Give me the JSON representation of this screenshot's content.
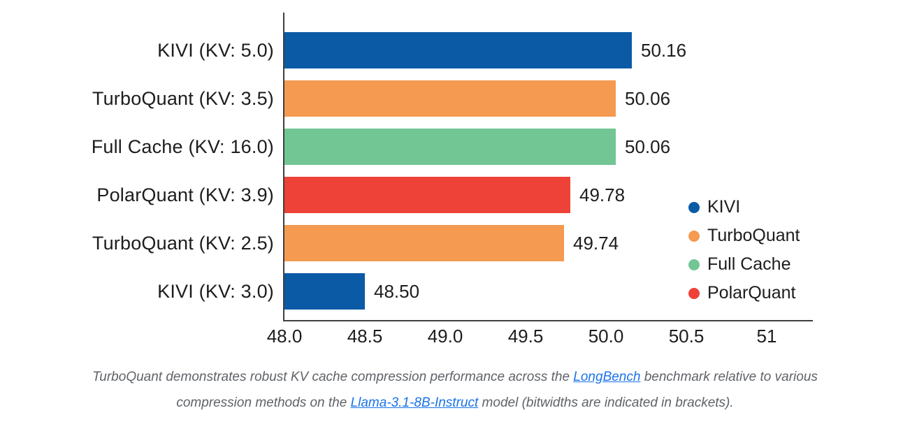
{
  "chart_data": {
    "type": "bar",
    "orientation": "horizontal",
    "title": "",
    "xlabel": "",
    "ylabel": "",
    "xlim": [
      48.0,
      51.3
    ],
    "grid": false,
    "bars": [
      {
        "category": "KIVI (KV: 5.0)",
        "value": 50.16,
        "label": "50.16",
        "series": "KIVI"
      },
      {
        "category": "TurboQuant (KV: 3.5)",
        "value": 50.06,
        "label": "50.06",
        "series": "TurboQuant"
      },
      {
        "category": "Full Cache (KV: 16.0)",
        "value": 50.06,
        "label": "50.06",
        "series": "Full Cache"
      },
      {
        "category": "PolarQuant (KV: 3.9)",
        "value": 49.78,
        "label": "49.78",
        "series": "PolarQuant"
      },
      {
        "category": "TurboQuant (KV: 2.5)",
        "value": 49.74,
        "label": "49.74",
        "series": "TurboQuant"
      },
      {
        "category": "KIVI (KV: 3.0)",
        "value": 48.5,
        "label": "48.50",
        "series": "KIVI"
      }
    ],
    "series_colors": {
      "KIVI": "#0B5AA5",
      "TurboQuant": "#F49A51",
      "Full Cache": "#71C694",
      "PolarQuant": "#EE4137"
    },
    "xticks": [
      {
        "label": "48.0",
        "value": 48.0
      },
      {
        "label": "48.5",
        "value": 48.5
      },
      {
        "label": "49.0",
        "value": 49.0
      },
      {
        "label": "49.5",
        "value": 49.5
      },
      {
        "label": "50.0",
        "value": 50.0
      },
      {
        "label": "50.5",
        "value": 50.5
      },
      {
        "label": "51",
        "value": 51.0
      }
    ],
    "legend": {
      "position": "right",
      "entries": [
        "KIVI",
        "TurboQuant",
        "Full Cache",
        "PolarQuant"
      ]
    }
  },
  "caption": {
    "segments": [
      {
        "text": "TurboQuant demonstrates robust KV cache compression performance across the "
      },
      {
        "text": "LongBench",
        "link": true,
        "name": "longbench-link"
      },
      {
        "text": " benchmark relative to various compression methods on the "
      },
      {
        "text": "Llama-3.1-8B-Instruct",
        "link": true,
        "name": "llama-3-1-8b-instruct-link"
      },
      {
        "text": " model (bitwidths are indicated in brackets)."
      }
    ]
  },
  "colors": {
    "background": "#FFFFFF",
    "axis_line": "#3F3F3F",
    "text": "#1D1D1D",
    "caption_text": "#5F6368",
    "link": "#1A73E8"
  }
}
